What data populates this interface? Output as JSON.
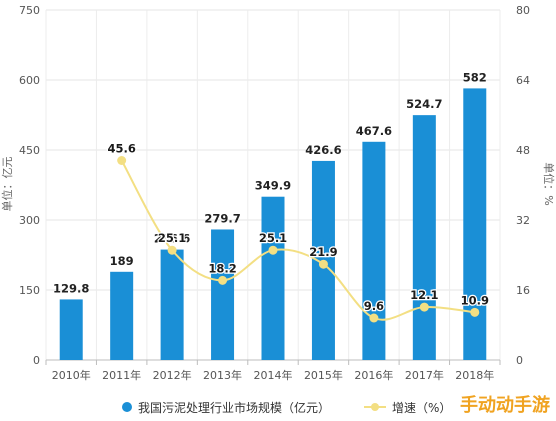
{
  "chart_data": {
    "type": "bar",
    "categories": [
      "2010年",
      "2011年",
      "2012年",
      "2013年",
      "2014年",
      "2015年",
      "2016年",
      "2017年",
      "2018年"
    ],
    "series": [
      {
        "name": "我国污泥处理行业市场规模（亿元）",
        "type": "bar",
        "axis": "left",
        "color": "#1a8fd6",
        "values": [
          129.8,
          189,
          236.6,
          279.7,
          349.9,
          426.6,
          467.6,
          524.7,
          582
        ],
        "labels": [
          "129.8",
          "189",
          "236.6",
          "279.7",
          "349.9",
          "426.6",
          "467.6",
          "524.7",
          "582"
        ]
      },
      {
        "name": "增速（%）",
        "type": "line",
        "axis": "right",
        "color": "#f3df83",
        "values": [
          null,
          45.6,
          25.1,
          18.2,
          25.1,
          21.9,
          9.6,
          12.1,
          10.9
        ],
        "labels": [
          "",
          "45.6",
          "25.1",
          "18.2",
          "25.1",
          "21.9",
          "9.6",
          "12.1",
          "10.9"
        ]
      }
    ],
    "y_left": {
      "label": "单位：亿元",
      "ylim": [
        0,
        750
      ],
      "ticks": [
        0,
        150,
        300,
        450,
        600,
        750
      ]
    },
    "y_right": {
      "label": "单位：%",
      "ylim": [
        0,
        80
      ],
      "ticks": [
        0,
        16,
        32,
        48,
        64,
        80
      ]
    },
    "grid": true,
    "legend_position": "bottom"
  },
  "legend": {
    "bar_label": "我国污泥处理行业市场规模（亿元）",
    "line_label": "增速（%）"
  },
  "watermark": "手动动手游"
}
